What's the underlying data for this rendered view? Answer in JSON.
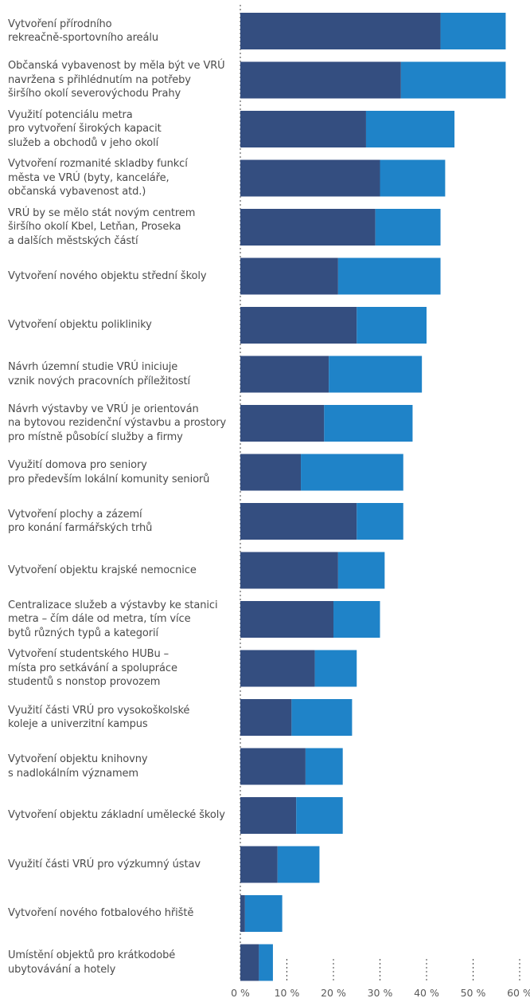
{
  "chart_data": {
    "type": "bar",
    "orientation": "horizontal",
    "stacked": true,
    "categories": [
      "Vytvoření přírodního\nrekreačně-sportovního areálu",
      "Občanská vybavenost by měla být ve VRÚ\nnavržena s přihlédnutím na potřeby\nširšího okolí severovýchodu Prahy",
      "Využití potenciálu metra\npro vytvoření širokých kapacit\nslužeb a obchodů v jeho okolí",
      "Vytvoření rozmanité skladby funkcí\nměsta ve VRÚ (byty, kanceláře,\nobčanská vybavenost atd.)",
      "VRÚ by se mělo stát novým centrem\nširšího okolí Kbel, Letňan, Proseka\na dalších městských částí",
      "Vytvoření nového objektu střední školy",
      "Vytvoření objektu polikliniky",
      "Návrh územní studie VRÚ iniciuje\nvznik nových pracovních příležitostí",
      "Návrh výstavby ve VRÚ je orientován\nna bytovou rezidenční výstavbu a prostory\npro místně působící služby a firmy",
      "Využití domova pro seniory\npro především lokální komunity seniorů",
      "Vytvoření plochy a zázemí\npro konání farmářských trhů",
      "Vytvoření objektu krajské nemocnice",
      "Centralizace služeb a výstavby ke stanici\nmetra – čím dále od metra, tím více\nbytů různých typů a kategorií",
      "Vytvoření studentského HUBu –\nmísta pro setkávání a spolupráce\nstudentů s nonstop provozem",
      "Využití části VRÚ pro vysokoškolské\nkoleje a univerzitní kampus",
      "Vytvoření objektu knihovny\ns nadlokálním významem",
      "Vytvoření objektu základní umělecké školy",
      "Využití části VRÚ pro výzkumný ústav",
      "Vytvoření nového fotbalového hřiště",
      "Umístění objektů pro krátkodobé\nubytovávání a hotely"
    ],
    "series": [
      {
        "color": "#344e80",
        "values": [
          43,
          34.5,
          27,
          30,
          29,
          21,
          25,
          19,
          18,
          13,
          25,
          21,
          20,
          16,
          11,
          14,
          12,
          8,
          1,
          4
        ]
      },
      {
        "color": "#1f83c8",
        "values": [
          14,
          22.5,
          19,
          14,
          14,
          22,
          15,
          20,
          19,
          22,
          10,
          10,
          10,
          9,
          13,
          8,
          10,
          9,
          8,
          3
        ]
      }
    ],
    "xlim": [
      0,
      60
    ],
    "xticks": [
      0,
      10,
      20,
      30,
      40,
      50,
      60
    ],
    "tick_labels": [
      "0 %",
      "10 %",
      "20 %",
      "30 %",
      "40 %",
      "50 %",
      "60 %"
    ],
    "grid": "dotted-vertical",
    "legend": "none"
  }
}
